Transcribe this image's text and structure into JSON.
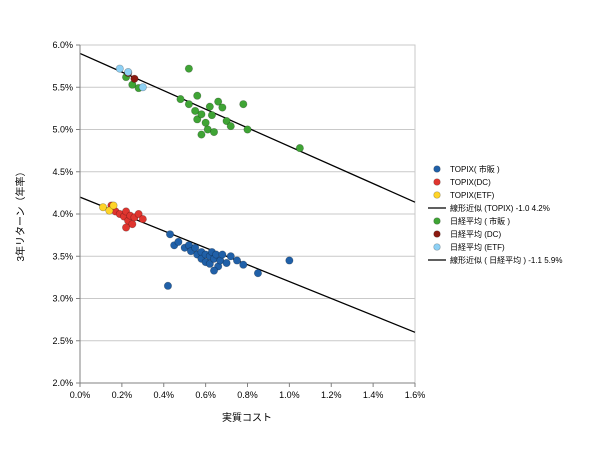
{
  "chart_data": {
    "type": "scatter",
    "title": "",
    "xlabel": "実質コスト",
    "ylabel": "3年リターン（年率）",
    "xlim": [
      0.0,
      1.6
    ],
    "ylim": [
      2.0,
      6.0
    ],
    "units": "percent",
    "grid": "horizontal",
    "legend_position": "right",
    "x_ticks": [
      {
        "value": 0.0,
        "label": "0.0%"
      },
      {
        "value": 0.2,
        "label": "0.2%"
      },
      {
        "value": 0.4,
        "label": "0.4%"
      },
      {
        "value": 0.6,
        "label": "0.6%"
      },
      {
        "value": 0.8,
        "label": "0.8%"
      },
      {
        "value": 1.0,
        "label": "1.0%"
      },
      {
        "value": 1.2,
        "label": "1.2%"
      },
      {
        "value": 1.4,
        "label": "1.4%"
      },
      {
        "value": 1.6,
        "label": "1.6%"
      }
    ],
    "y_ticks": [
      {
        "value": 2.0,
        "label": "2.0%"
      },
      {
        "value": 2.5,
        "label": "2.5%"
      },
      {
        "value": 3.0,
        "label": "3.0%"
      },
      {
        "value": 3.5,
        "label": "3.5%"
      },
      {
        "value": 4.0,
        "label": "4.0%"
      },
      {
        "value": 4.5,
        "label": "4.5%"
      },
      {
        "value": 5.0,
        "label": "5.0%"
      },
      {
        "value": 5.5,
        "label": "5.5%"
      },
      {
        "value": 6.0,
        "label": "6.0%"
      }
    ],
    "series": [
      {
        "name": "TOPIX( 市販 )",
        "type": "scatter",
        "color": "#2060A8",
        "points": [
          [
            0.43,
            3.76
          ],
          [
            0.45,
            3.63
          ],
          [
            0.47,
            3.67
          ],
          [
            0.5,
            3.6
          ],
          [
            0.52,
            3.63
          ],
          [
            0.53,
            3.56
          ],
          [
            0.55,
            3.6
          ],
          [
            0.56,
            3.52
          ],
          [
            0.58,
            3.55
          ],
          [
            0.58,
            3.47
          ],
          [
            0.6,
            3.52
          ],
          [
            0.6,
            3.43
          ],
          [
            0.62,
            3.5
          ],
          [
            0.62,
            3.41
          ],
          [
            0.63,
            3.55
          ],
          [
            0.64,
            3.47
          ],
          [
            0.65,
            3.52
          ],
          [
            0.66,
            3.38
          ],
          [
            0.67,
            3.45
          ],
          [
            0.68,
            3.52
          ],
          [
            0.7,
            3.42
          ],
          [
            0.72,
            3.5
          ],
          [
            0.75,
            3.45
          ],
          [
            0.78,
            3.4
          ],
          [
            0.85,
            3.3
          ],
          [
            1.0,
            3.45
          ],
          [
            0.42,
            3.15
          ],
          [
            0.64,
            3.33
          ]
        ]
      },
      {
        "name": "TOPIX(DC)",
        "type": "scatter",
        "color": "#E0352F",
        "points": [
          [
            0.15,
            4.1
          ],
          [
            0.17,
            4.03
          ],
          [
            0.19,
            4.0
          ],
          [
            0.21,
            3.97
          ],
          [
            0.22,
            4.03
          ],
          [
            0.23,
            3.92
          ],
          [
            0.24,
            3.98
          ],
          [
            0.25,
            3.88
          ],
          [
            0.26,
            3.96
          ],
          [
            0.22,
            3.84
          ],
          [
            0.28,
            4.0
          ],
          [
            0.3,
            3.94
          ]
        ]
      },
      {
        "name": "TOPIX(ETF)",
        "type": "scatter",
        "color": "#FFD428",
        "points": [
          [
            0.11,
            4.08
          ],
          [
            0.14,
            4.04
          ],
          [
            0.16,
            4.1
          ]
        ]
      },
      {
        "name": "線形近似 (TOPIX) -1.0 4.2%",
        "type": "line",
        "color": "#000000",
        "points": [
          [
            0.0,
            4.2
          ],
          [
            1.6,
            2.6
          ]
        ]
      },
      {
        "name": "日経平均 ( 市販 )",
        "type": "scatter",
        "color": "#3FA435",
        "points": [
          [
            0.22,
            5.62
          ],
          [
            0.25,
            5.53
          ],
          [
            0.28,
            5.49
          ],
          [
            0.52,
            5.72
          ],
          [
            0.48,
            5.36
          ],
          [
            0.52,
            5.3
          ],
          [
            0.56,
            5.4
          ],
          [
            0.55,
            5.22
          ],
          [
            0.56,
            5.12
          ],
          [
            0.58,
            5.18
          ],
          [
            0.6,
            5.08
          ],
          [
            0.61,
            5.0
          ],
          [
            0.62,
            5.27
          ],
          [
            0.63,
            5.17
          ],
          [
            0.64,
            4.97
          ],
          [
            0.66,
            5.33
          ],
          [
            0.68,
            5.26
          ],
          [
            0.7,
            5.1
          ],
          [
            0.72,
            5.04
          ],
          [
            0.78,
            5.3
          ],
          [
            0.8,
            5.0
          ],
          [
            1.05,
            4.78
          ],
          [
            0.58,
            4.94
          ]
        ]
      },
      {
        "name": "日経平均 (DC)",
        "type": "scatter",
        "color": "#8C1A11",
        "points": [
          [
            0.23,
            5.67
          ],
          [
            0.26,
            5.6
          ]
        ]
      },
      {
        "name": "日経平均 (ETF)",
        "type": "scatter",
        "color": "#8ED1F5",
        "points": [
          [
            0.19,
            5.72
          ],
          [
            0.23,
            5.68
          ],
          [
            0.3,
            5.5
          ]
        ]
      },
      {
        "name": "線形近似 ( 日経平均 ) -1.1 5.9%",
        "type": "line",
        "color": "#000000",
        "points": [
          [
            0.0,
            5.9
          ],
          [
            1.6,
            4.14
          ]
        ]
      }
    ]
  },
  "colors": {
    "gridline": "#c9c9c9",
    "axis": "#808080",
    "background": "#ffffff"
  }
}
